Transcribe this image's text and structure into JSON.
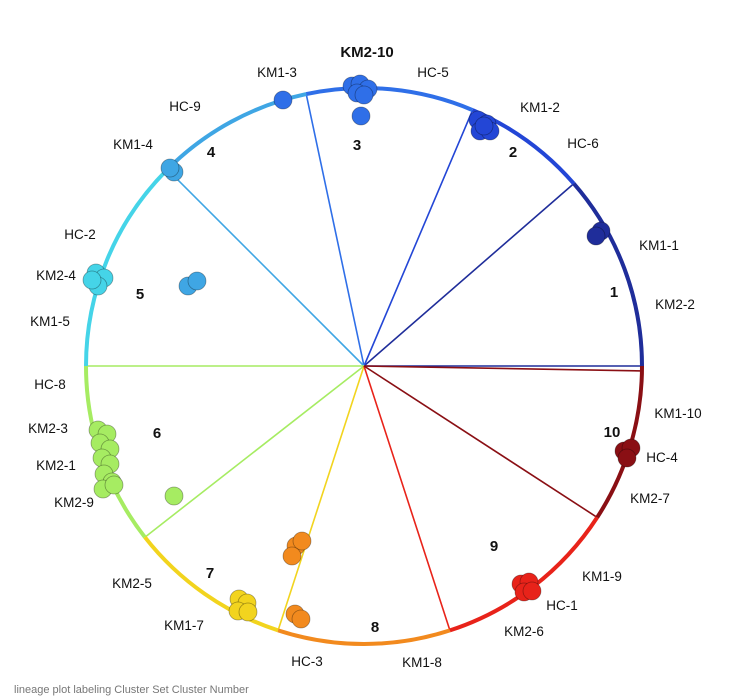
{
  "diagram": {
    "colors": {
      "c1": "#1f2d9a",
      "c2": "#2346d6",
      "c3": "#2f6fe8",
      "c4": "#3fa6e4",
      "c5": "#45d4e8",
      "c6": "#a6ec62",
      "c7": "#f2d41e",
      "c8": "#f28a1e",
      "c9": "#e8231a",
      "c10": "#8a0f14"
    },
    "sector_numbers": [
      "1",
      "2",
      "3",
      "4",
      "5",
      "6",
      "7",
      "8",
      "9",
      "10"
    ],
    "labels": {
      "KM2-10": "KM2-10",
      "KM1-3": "KM1-3",
      "HC-5": "HC-5",
      "KM1-2": "KM1-2",
      "HC-9": "HC-9",
      "KM1-4": "KM1-4",
      "HC-6": "HC-6",
      "HC-2": "HC-2",
      "KM1-1": "KM1-1",
      "KM2-4": "KM2-4",
      "KM2-2": "KM2-2",
      "KM1-5": "KM1-5",
      "HC-8": "HC-8",
      "KM1-10": "KM1-10",
      "KM2-3": "KM2-3",
      "HC-4": "HC-4",
      "KM2-1": "KM2-1",
      "KM2-7": "KM2-7",
      "KM2-9": "KM2-9",
      "KM1-9": "KM1-9",
      "KM2-5": "KM2-5",
      "HC-1": "HC-1",
      "KM1-7": "KM1-7",
      "KM2-6": "KM2-6",
      "HC-3": "HC-3",
      "KM1-8": "KM1-8"
    },
    "caption": "lineage plot labeling Cluster Set Cluster Number"
  }
}
